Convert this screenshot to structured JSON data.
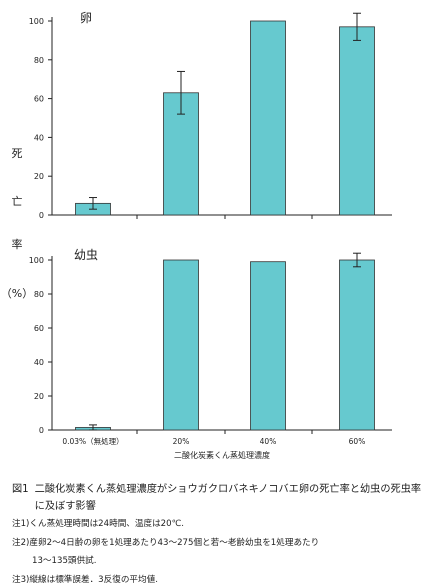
{
  "chart_data": [
    {
      "type": "bar",
      "panel_label": "卵",
      "categories": [
        "0.03%（無処理）",
        "20%",
        "40%",
        "60%"
      ],
      "values": [
        6,
        63,
        100,
        97
      ],
      "error": [
        3,
        11,
        0,
        7
      ],
      "ylim": [
        0,
        100
      ],
      "yticks": [
        "0",
        "20",
        "40",
        "60",
        "80",
        "100"
      ],
      "bar_color": "#66c9cf"
    },
    {
      "type": "bar",
      "panel_label": "幼虫",
      "categories": [
        "0.03%（無処理）",
        "20%",
        "40%",
        "60%"
      ],
      "values": [
        1.5,
        100,
        99,
        100
      ],
      "error": [
        1.5,
        0,
        0,
        4
      ],
      "ylim": [
        0,
        100
      ],
      "yticks": [
        "0",
        "20",
        "40",
        "60",
        "80",
        "100"
      ],
      "tick_labels": [
        "0.03%（無処理）",
        "20%",
        "40%",
        "60%"
      ],
      "xlabel": "二酸化炭素くん蒸処理濃度",
      "bar_color": "#66c9cf"
    }
  ],
  "ylabel_chars": [
    "死",
    "亡",
    "率",
    "（%）"
  ],
  "caption": {
    "fig_no": "図1",
    "title": "二酸化炭素くん蒸処理濃度がショウガクロバネキノコバエ卵の死亡率と幼虫の死虫率に及ぼす影響",
    "notes": [
      "注1)くん蒸処理時間は24時間、温度は20℃.",
      "注2)産卵2～4日齢の卵を1処理あたり43～275個と若～老齢幼虫を1処理あたり",
      "13～135頭供試.",
      "注3)縦線は標準誤差．3反復の平均値."
    ]
  }
}
